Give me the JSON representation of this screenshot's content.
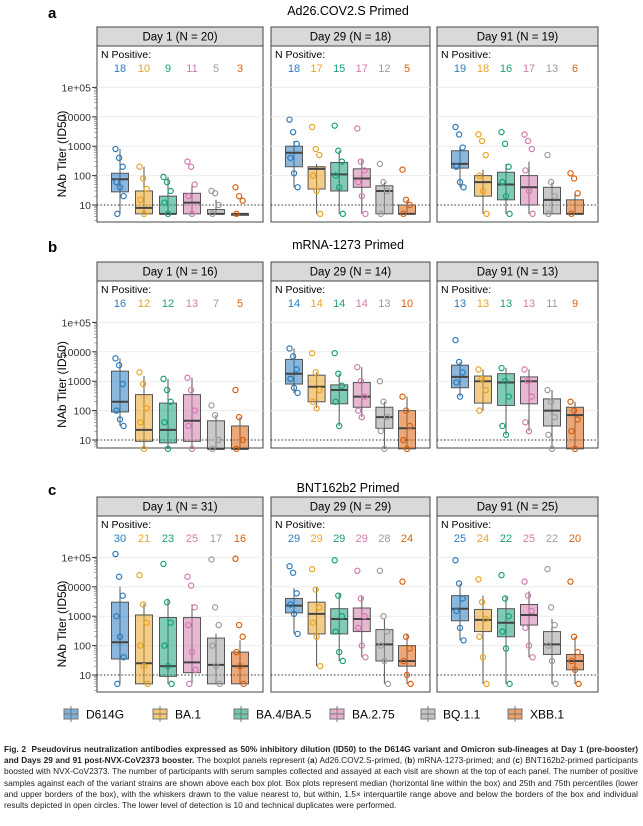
{
  "colors": {
    "D614G": "#2a7bbd",
    "BA.1": "#e9a321",
    "BA.4/BA.5": "#16a07a",
    "BA.2.75": "#d27aae",
    "BQ.1.1": "#9c9c9c",
    "XBB.1": "#d8600f"
  },
  "legend": [
    "D614G",
    "BA.1",
    "BA.4/BA.5",
    "BA.2.75",
    "BQ.1.1",
    "XBB.1"
  ],
  "caption": {
    "fig_label": "Fig. 2",
    "bold": "Pseudovirus neutralization antibodies expressed as 50% inhibitory dilution (ID50) to the D614G variant and Omicron sub-lineages at Day 1 (pre-booster) and Days 29 and 91 post-NVX-CoV2373 booster.",
    "p1": " The boxplot panels represent (",
    "a": "a",
    "p2": ") Ad26.COV2.S-primed, (",
    "b": "b",
    "p3": ") mRNA-1273-primed; and (",
    "c": "c",
    "p4": ") BNT162b2-primed participants boosted with NVX-CoV2373. The number of participants with serum samples collected and assayed at each visit are shown at the top of each panel. The number of positive samples against each of the variant strains are shown above each box plot. Box plots represent median (horizontal line within the box) and 25th and 75th percentiles (lower and upper borders of the box), with the whiskers drawn to the value nearest to, but within, 1.5× interquartile range above and below the borders of the box and individual results depicted in open circles. The lower level of detection is 10 and technical duplicates were performed."
  },
  "chart_data": [
    {
      "type": "box",
      "label": "a",
      "title": "Ad26.COV2.S Primed",
      "ylabel": "NAb Titer (ID50)",
      "yscale": "log",
      "yticks": [
        "10",
        "100",
        "1000",
        "10000",
        "1e+05"
      ],
      "reference_line": 10,
      "npos_label": "N Positive:",
      "panels": [
        {
          "strip": "Day 1 (N = 20)",
          "npos": [
            18,
            10,
            9,
            11,
            5,
            3
          ],
          "box": [
            [
              5,
              28,
              75,
              120,
              800
            ],
            [
              5,
              5,
              8,
              30,
              200
            ],
            [
              5,
              5,
              5,
              20,
              90
            ],
            [
              5,
              5,
              12,
              25,
              50
            ],
            [
              5,
              5,
              5,
              7,
              15
            ],
            [
              5,
              5,
              5,
              5,
              5
            ]
          ],
          "points": [
            [
              800,
              400,
              200,
              60,
              40,
              20,
              5
            ],
            [
              200,
              80,
              35,
              15,
              5
            ],
            [
              90,
              60,
              30,
              12,
              5
            ],
            [
              300,
              200,
              50,
              20,
              5
            ],
            [
              30,
              25,
              10,
              5
            ],
            [
              40,
              20,
              14,
              5
            ]
          ]
        },
        {
          "strip": "Day 29 (N = 18)",
          "npos": [
            18,
            17,
            15,
            17,
            12,
            5
          ],
          "box": [
            [
              40,
              200,
              600,
              1000,
              1500
            ],
            [
              5,
              35,
              170,
              200,
              250
            ],
            [
              5,
              30,
              110,
              280,
              700
            ],
            [
              5,
              40,
              80,
              170,
              350
            ],
            [
              5,
              5,
              30,
              45,
              60
            ],
            [
              5,
              5,
              5,
              10,
              15
            ]
          ],
          "points": [
            [
              8000,
              3000,
              1200,
              400,
              120,
              40
            ],
            [
              4500,
              800,
              500,
              100,
              30,
              5
            ],
            [
              5000,
              700,
              300,
              100,
              40,
              5
            ],
            [
              4000,
              300,
              150,
              60,
              20,
              5
            ],
            [
              250,
              60,
              30,
              5
            ],
            [
              160,
              15,
              10,
              5
            ]
          ]
        },
        {
          "strip": "Day 91 (N = 19)",
          "npos": [
            19,
            18,
            16,
            17,
            13,
            6
          ],
          "box": [
            [
              40,
              180,
              250,
              700,
              1000
            ],
            [
              5,
              20,
              60,
              100,
              160
            ],
            [
              5,
              15,
              50,
              130,
              250
            ],
            [
              5,
              10,
              40,
              100,
              300
            ],
            [
              5,
              5,
              15,
              40,
              60
            ],
            [
              5,
              5,
              5,
              15,
              25
            ]
          ],
          "points": [
            [
              4500,
              2500,
              900,
              200,
              60,
              40
            ],
            [
              2500,
              1500,
              500,
              100,
              30,
              5
            ],
            [
              3000,
              1200,
              200,
              60,
              20,
              5
            ],
            [
              2500,
              1500,
              800,
              150,
              30,
              5
            ],
            [
              500,
              60,
              20,
              5
            ],
            [
              120,
              80,
              25,
              5
            ]
          ]
        }
      ]
    },
    {
      "type": "box",
      "label": "b",
      "title": "mRNA-1273 Primed",
      "ylabel": "NAb Titer (ID50)",
      "yscale": "log",
      "yticks": [
        "10",
        "100",
        "1000",
        "10000",
        "1e+05"
      ],
      "reference_line": 10,
      "npos_label": "N Positive:",
      "panels": [
        {
          "strip": "Day 1 (N = 16)",
          "npos": [
            16,
            12,
            12,
            13,
            7,
            5
          ],
          "box": [
            [
              30,
              90,
              200,
              2200,
              6000
            ],
            [
              5,
              9,
              22,
              350,
              1500
            ],
            [
              5,
              8,
              22,
              180,
              1200
            ],
            [
              5,
              9,
              45,
              350,
              1300
            ],
            [
              5,
              5,
              5,
              45,
              70
            ],
            [
              5,
              5,
              5,
              30,
              60
            ]
          ],
          "points": [
            [
              6000,
              3500,
              800,
              100,
              50,
              30
            ],
            [
              2000,
              800,
              120,
              40,
              5
            ],
            [
              1200,
              500,
              200,
              40,
              5
            ],
            [
              1300,
              500,
              100,
              30,
              5
            ],
            [
              150,
              70,
              10,
              5
            ],
            [
              500,
              60,
              10,
              5
            ]
          ]
        },
        {
          "strip": "Day 29 (N = 14)",
          "npos": [
            14,
            14,
            14,
            14,
            13,
            10
          ],
          "box": [
            [
              400,
              800,
              1800,
              5500,
              13000
            ],
            [
              120,
              200,
              650,
              1600,
              2000
            ],
            [
              30,
              170,
              500,
              750,
              1800
            ],
            [
              60,
              130,
              300,
              900,
              3000
            ],
            [
              5,
              25,
              60,
              130,
              200
            ],
            [
              5,
              5,
              25,
              100,
              300
            ]
          ],
          "points": [
            [
              13000,
              7000,
              2500,
              1200,
              600,
              400
            ],
            [
              9000,
              2000,
              500,
              200,
              120
            ],
            [
              9000,
              1800,
              700,
              200,
              30
            ],
            [
              3000,
              1000,
              300,
              100,
              60
            ],
            [
              1000,
              200,
              60,
              20,
              5
            ],
            [
              300,
              100,
              30,
              10,
              5
            ]
          ]
        },
        {
          "strip": "Day 91 (N = 13)",
          "npos": [
            13,
            13,
            13,
            13,
            11,
            9
          ],
          "box": [
            [
              300,
              600,
              1400,
              3500,
              4500
            ],
            [
              100,
              180,
              1000,
              1500,
              2500
            ],
            [
              15,
              150,
              900,
              1800,
              2800
            ],
            [
              20,
              170,
              1000,
              1400,
              2500
            ],
            [
              5,
              30,
              100,
              250,
              500
            ],
            [
              5,
              5,
              70,
              130,
              200
            ]
          ],
          "points": [
            [
              25000,
              4500,
              2000,
              900,
              300
            ],
            [
              2500,
              1200,
              500,
              100
            ],
            [
              2800,
              1000,
              300,
              30,
              15
            ],
            [
              2500,
              1000,
              300,
              40,
              20
            ],
            [
              500,
              200,
              60,
              15,
              5
            ],
            [
              200,
              100,
              50,
              20,
              5
            ]
          ]
        }
      ]
    },
    {
      "type": "box",
      "label": "c",
      "title": "BNT162b2 Primed",
      "ylabel": "NAb Titer (ID50)",
      "yscale": "log",
      "yticks": [
        "10",
        "100",
        "1000",
        "10000",
        "1e+05"
      ],
      "reference_line": 10,
      "npos_label": "N Positive:",
      "panels": [
        {
          "strip": "Day 1 (N = 31)",
          "npos": [
            30,
            21,
            23,
            25,
            17,
            16
          ],
          "box": [
            [
              5,
              35,
              130,
              3000,
              10000
            ],
            [
              5,
              5,
              25,
              1100,
              2700
            ],
            [
              5,
              9,
              20,
              900,
              4000
            ],
            [
              5,
              12,
              27,
              900,
              2500
            ],
            [
              5,
              5,
              22,
              180,
              250
            ],
            [
              5,
              5,
              20,
              60,
              150
            ]
          ],
          "points": [
            [
              130000,
              22000,
              5000,
              1000,
              200,
              40,
              5
            ],
            [
              25000,
              2500,
              600,
              100,
              20,
              5
            ],
            [
              60000,
              3000,
              600,
              100,
              20,
              5
            ],
            [
              22000,
              11000,
              2000,
              500,
              60,
              15,
              5
            ],
            [
              85000,
              2000,
              500,
              100,
              20,
              5
            ],
            [
              90000,
              500,
              200,
              60,
              20,
              5
            ]
          ]
        },
        {
          "strip": "Day 29 (N = 29)",
          "npos": [
            29,
            29,
            29,
            29,
            28,
            24
          ],
          "box": [
            [
              250,
              1300,
              2300,
              4000,
              9000
            ],
            [
              20,
              250,
              1200,
              3000,
              10000
            ],
            [
              30,
              250,
              800,
              1800,
              6000
            ],
            [
              40,
              300,
              800,
              1900,
              5000
            ],
            [
              5,
              30,
              110,
              350,
              800
            ],
            [
              5,
              20,
              30,
              100,
              250
            ]
          ],
          "points": [
            [
              50000,
              30000,
              6000,
              2500,
              1200,
              250
            ],
            [
              40000,
              8000,
              2000,
              600,
              200,
              20
            ],
            [
              80000,
              5000,
              1000,
              300,
              60,
              30
            ],
            [
              35000,
              4000,
              1000,
              400,
              100,
              40
            ],
            [
              35000,
              1000,
              300,
              100,
              30,
              5
            ],
            [
              15000,
              200,
              80,
              30,
              10,
              5
            ]
          ]
        },
        {
          "strip": "Day 91 (N = 25)",
          "npos": [
            25,
            24,
            22,
            25,
            22,
            20
          ],
          "box": [
            [
              150,
              700,
              1800,
              5000,
              13000
            ],
            [
              5,
              300,
              750,
              1700,
              5000
            ],
            [
              5,
              200,
              600,
              1800,
              5000
            ],
            [
              40,
              500,
              1100,
              2500,
              7000
            ],
            [
              5,
              50,
              110,
              300,
              800
            ],
            [
              5,
              15,
              30,
              50,
              200
            ]
          ],
          "points": [
            [
              80000,
              13000,
              4000,
              1500,
              400,
              150
            ],
            [
              18000,
              3000,
              800,
              200,
              40,
              5
            ],
            [
              25000,
              4000,
              1000,
              300,
              80,
              5
            ],
            [
              15000,
              5000,
              1500,
              400,
              100,
              40
            ],
            [
              40000,
              2000,
              500,
              100,
              30,
              5
            ],
            [
              15000,
              200,
              60,
              30,
              15,
              5
            ]
          ]
        }
      ]
    }
  ]
}
